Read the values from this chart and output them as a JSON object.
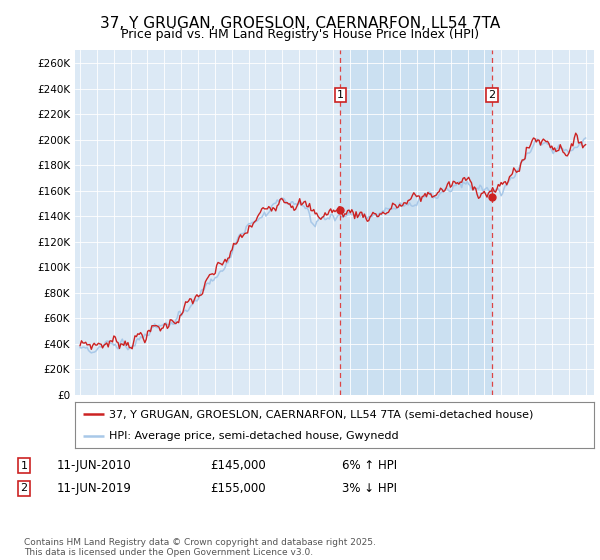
{
  "title": "37, Y GRUGAN, GROESLON, CAERNARFON, LL54 7TA",
  "subtitle": "Price paid vs. HM Land Registry's House Price Index (HPI)",
  "ylim": [
    0,
    270000
  ],
  "yticks": [
    0,
    20000,
    40000,
    60000,
    80000,
    100000,
    120000,
    140000,
    160000,
    180000,
    200000,
    220000,
    240000,
    260000
  ],
  "hpi_color": "#a8c8e8",
  "price_color": "#cc2222",
  "marker1_year": 2010.44,
  "marker2_year": 2019.44,
  "sale1_date": "11-JUN-2010",
  "sale1_price": 145000,
  "sale1_price_str": "£145,000",
  "sale1_hpi": "6% ↑ HPI",
  "sale2_date": "11-JUN-2019",
  "sale2_price": 155000,
  "sale2_price_str": "£155,000",
  "sale2_hpi": "3% ↓ HPI",
  "legend1": "37, Y GRUGAN, GROESLON, CAERNARFON, LL54 7TA (semi-detached house)",
  "legend2": "HPI: Average price, semi-detached house, Gwynedd",
  "footnote": "Contains HM Land Registry data © Crown copyright and database right 2025.\nThis data is licensed under the Open Government Licence v3.0.",
  "background_color": "#ffffff",
  "plot_bg_color": "#dce9f5",
  "shade_color": "#c5ddf0",
  "grid_color": "#cccccc",
  "vline_color": "#dd4444"
}
